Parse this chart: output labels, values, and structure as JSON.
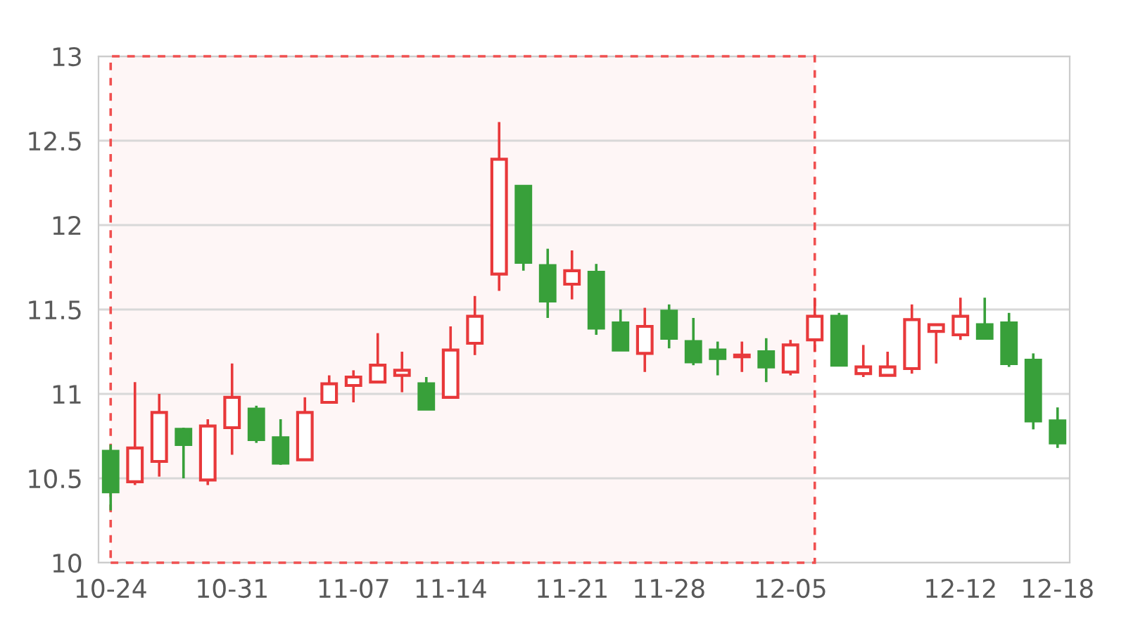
{
  "chart_data": {
    "type": "candlestick",
    "categories": [
      "10-24",
      null,
      null,
      null,
      null,
      "10-31",
      null,
      null,
      null,
      null,
      "11-07",
      null,
      null,
      null,
      "11-14",
      null,
      null,
      null,
      null,
      "11-21",
      null,
      null,
      null,
      "11-28",
      null,
      null,
      null,
      null,
      "12-05",
      null,
      null,
      null,
      null,
      null,
      null,
      "12-12",
      null,
      null,
      null,
      "12-18"
    ],
    "ohlc": [
      [
        10.66,
        10.7,
        10.31,
        10.42
      ],
      [
        10.48,
        11.07,
        10.46,
        10.68
      ],
      [
        10.6,
        11.0,
        10.51,
        10.89
      ],
      [
        10.79,
        10.8,
        10.5,
        10.7
      ],
      [
        10.49,
        10.85,
        10.46,
        10.81
      ],
      [
        10.8,
        11.18,
        10.64,
        10.98
      ],
      [
        10.91,
        10.93,
        10.71,
        10.73
      ],
      [
        10.74,
        10.85,
        10.58,
        10.59
      ],
      [
        10.61,
        10.98,
        10.61,
        10.89
      ],
      [
        10.95,
        11.11,
        10.95,
        11.06
      ],
      [
        11.05,
        11.14,
        10.95,
        11.1
      ],
      [
        11.07,
        11.36,
        11.07,
        11.17
      ],
      [
        11.11,
        11.25,
        11.01,
        11.14
      ],
      [
        11.06,
        11.1,
        10.91,
        10.91
      ],
      [
        10.98,
        11.4,
        10.98,
        11.26
      ],
      [
        11.3,
        11.58,
        11.23,
        11.46
      ],
      [
        11.71,
        12.61,
        11.61,
        12.39
      ],
      [
        12.23,
        12.23,
        11.73,
        11.78
      ],
      [
        11.76,
        11.86,
        11.45,
        11.55
      ],
      [
        11.65,
        11.85,
        11.56,
        11.73
      ],
      [
        11.72,
        11.77,
        11.35,
        11.39
      ],
      [
        11.42,
        11.5,
        11.26,
        11.26
      ],
      [
        11.24,
        11.51,
        11.13,
        11.4
      ],
      [
        11.49,
        11.53,
        11.27,
        11.33
      ],
      [
        11.31,
        11.45,
        11.17,
        11.19
      ],
      [
        11.26,
        11.31,
        11.11,
        11.21
      ],
      [
        11.22,
        11.31,
        11.13,
        11.23
      ],
      [
        11.25,
        11.33,
        11.07,
        11.16
      ],
      [
        11.13,
        11.32,
        11.11,
        11.29
      ],
      [
        11.32,
        11.57,
        11.25,
        11.46
      ],
      [
        11.46,
        11.48,
        11.17,
        11.17
      ],
      [
        11.12,
        11.29,
        11.1,
        11.16
      ],
      [
        11.11,
        11.25,
        11.11,
        11.16
      ],
      [
        11.15,
        11.53,
        11.12,
        11.44
      ],
      [
        11.37,
        11.41,
        11.18,
        11.41
      ],
      [
        11.35,
        11.57,
        11.32,
        11.46
      ],
      [
        11.41,
        11.57,
        11.33,
        11.33
      ],
      [
        11.42,
        11.48,
        11.16,
        11.18
      ],
      [
        11.2,
        11.24,
        10.79,
        10.84
      ],
      [
        10.84,
        10.92,
        10.68,
        10.71
      ]
    ],
    "colors": [
      "#38a03a",
      "#e8393b",
      "#e8393b",
      "#38a03a",
      "#e8393b",
      "#e8393b",
      "#38a03a",
      "#38a03a",
      "#e8393b",
      "#e8393b",
      "#e8393b",
      "#e8393b",
      "#e8393b",
      "#38a03a",
      "#e8393b",
      "#e8393b",
      "#e8393b",
      "#38a03a",
      "#38a03a",
      "#e8393b",
      "#38a03a",
      "#38a03a",
      "#e8393b",
      "#38a03a",
      "#38a03a",
      "#38a03a",
      "#e8393b",
      "#38a03a",
      "#e8393b",
      "#e8393b",
      "#38a03a",
      "#e8393b",
      "#e8393b",
      "#e8393b",
      "#e8393b",
      "#e8393b",
      "#38a03a",
      "#38a03a",
      "#38a03a",
      "#38a03a"
    ],
    "ylim": [
      10,
      13
    ],
    "yticks": [
      10,
      10.5,
      11,
      11.5,
      12,
      12.5,
      13
    ],
    "grid": "y"
  }
}
